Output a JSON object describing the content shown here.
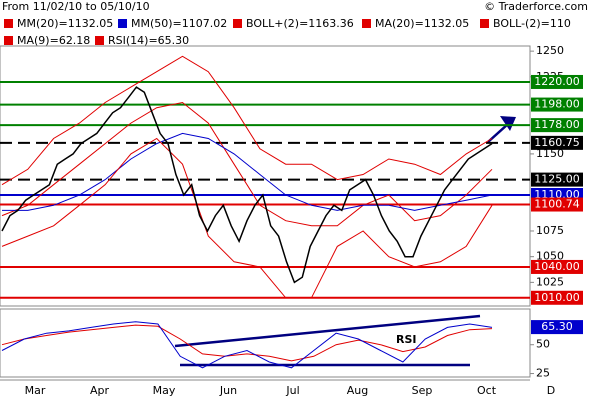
{
  "header": {
    "range": "From 11/02/10 to 05/10/10",
    "source": "© Traderforce.com"
  },
  "legend": [
    {
      "label": "MM(20)=1132.05",
      "color": "#e00000"
    },
    {
      "label": "MM(50)=1107.02",
      "color": "#0000cc"
    },
    {
      "label": "BOLL+(2)=1163.36",
      "color": "#e00000"
    },
    {
      "label": "MA(20)=1132.05",
      "color": "#e00000"
    },
    {
      "label": "BOLL-(2)=110",
      "color": "#e00000"
    },
    {
      "label": "MA(9)=62.18",
      "color": "#e00000"
    },
    {
      "label": "RSI(14)=65.30",
      "color": "#e00000"
    }
  ],
  "months": [
    "Mar",
    "Apr",
    "May",
    "Jun",
    "Jul",
    "Aug",
    "Sep",
    "Oct",
    "D"
  ],
  "chart_data": [
    {
      "type": "line",
      "ylim": [
        1002,
        1255
      ],
      "yticks": [
        1025,
        1050,
        1075,
        1150,
        1225,
        1250
      ],
      "levels": [
        {
          "value": 1220,
          "label": "1220.00",
          "color": "#008000"
        },
        {
          "value": 1198,
          "label": "1198.00",
          "color": "#008000"
        },
        {
          "value": 1178,
          "label": "1178.00",
          "color": "#008000"
        },
        {
          "value": 1160.75,
          "label": "1160.75",
          "color": "#000000"
        },
        {
          "value": 1125,
          "label": "1125.00",
          "color": "#000000"
        },
        {
          "value": 1110,
          "label": "1110.00",
          "color": "#0000cc"
        },
        {
          "value": 1100.74,
          "label": "1100.74",
          "color": "#e00000"
        },
        {
          "value": 1040,
          "label": "1040.00",
          "color": "#e00000"
        },
        {
          "value": 1010,
          "label": "1010.00",
          "color": "#e00000"
        }
      ],
      "series": [
        {
          "color": "#e00000",
          "values": [
            1120,
            1135,
            1165,
            1180,
            1200,
            1215,
            1230,
            1245,
            1230,
            1195,
            1155,
            1140,
            1140,
            1125,
            1130,
            1145,
            1140,
            1130,
            1150,
            1165
          ]
        },
        {
          "color": "#e00000",
          "values": [
            1090,
            1100,
            1120,
            1140,
            1160,
            1180,
            1195,
            1200,
            1180,
            1140,
            1100,
            1085,
            1080,
            1080,
            1100,
            1110,
            1085,
            1090,
            1110,
            1135
          ]
        },
        {
          "color": "#0000cc",
          "values": [
            1095,
            1095,
            1100,
            1110,
            1125,
            1145,
            1160,
            1170,
            1165,
            1150,
            1130,
            1110,
            1100,
            1095,
            1100,
            1100,
            1095,
            1100,
            1105,
            1110
          ]
        },
        {
          "color": "#e00000",
          "values": [
            1060,
            1070,
            1080,
            1100,
            1120,
            1150,
            1165,
            1140,
            1070,
            1045,
            1040,
            1010,
            1010,
            1060,
            1075,
            1050,
            1040,
            1045,
            1060,
            1100
          ]
        },
        {
          "color": "#000000",
          "values": [
            1075,
            1090,
            1095,
            1105,
            1110,
            1115,
            1120,
            1140,
            1145,
            1150,
            1160,
            1165,
            1170,
            1180,
            1190,
            1195,
            1205,
            1215,
            1210,
            1190,
            1170,
            1160,
            1130,
            1110,
            1120,
            1090,
            1075,
            1090,
            1100,
            1080,
            1065,
            1085,
            1100,
            1110,
            1080,
            1070,
            1045,
            1025,
            1030,
            1060,
            1075,
            1090,
            1100,
            1095,
            1115,
            1120,
            1125,
            1110,
            1090,
            1075,
            1065,
            1050,
            1050,
            1070,
            1085,
            1100,
            1115,
            1125,
            1135,
            1145,
            1150,
            1155,
            1160
          ]
        }
      ]
    },
    {
      "type": "line",
      "ylim": [
        22,
        81
      ],
      "yticks": [
        25,
        50
      ],
      "last": {
        "value": 65.3,
        "label": "65.30"
      },
      "annotation": "RSI",
      "series": [
        {
          "color": "#e00000",
          "values": [
            50,
            55,
            58,
            61,
            63,
            65,
            67,
            66,
            55,
            42,
            40,
            42,
            40,
            36,
            40,
            50,
            54,
            50,
            44,
            48,
            58,
            63,
            64
          ]
        },
        {
          "color": "#0000cc",
          "values": [
            45,
            55,
            60,
            62,
            65,
            68,
            70,
            68,
            40,
            30,
            40,
            45,
            35,
            30,
            45,
            60,
            55,
            45,
            35,
            55,
            65,
            68,
            65
          ]
        }
      ]
    }
  ]
}
